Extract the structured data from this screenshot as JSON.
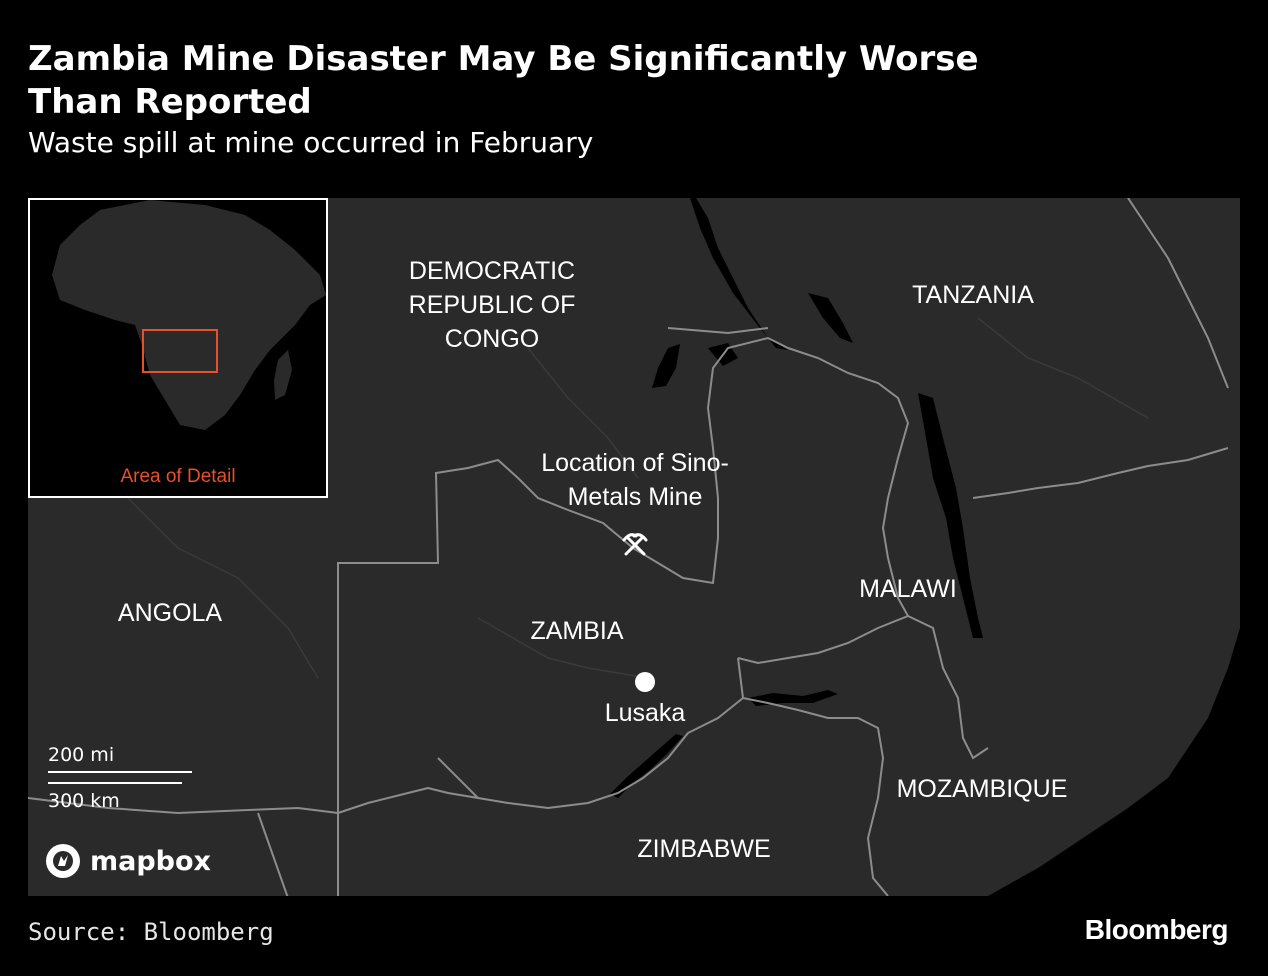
{
  "header": {
    "title": "Zambia Mine Disaster May Be Significantly Worse Than Reported",
    "subtitle": "Waste spill at mine occurred in February"
  },
  "map": {
    "countries": {
      "drc": "DEMOCRATIC\nREPUBLIC OF\nCONGO",
      "tanzania": "TANZANIA",
      "angola": "ANGOLA",
      "zambia": "ZAMBIA",
      "malawi": "MALAWI",
      "mozambique": "MOZAMBIQUE",
      "zimbabwe": "ZIMBABWE"
    },
    "mine_label": "Location of Sino-\nMetals Mine",
    "capital_label": "Lusaka",
    "inset_label": "Area of Detail",
    "scale": {
      "miles": "200 mi",
      "km": "300 km"
    },
    "attribution": "mapbox",
    "colors": {
      "land": "#2a2a2a",
      "water": "#000000",
      "border": "#8c8c8c",
      "highlight": "#e8502a"
    }
  },
  "footer": {
    "source": "Source: Bloomberg",
    "brand": "Bloomberg"
  }
}
